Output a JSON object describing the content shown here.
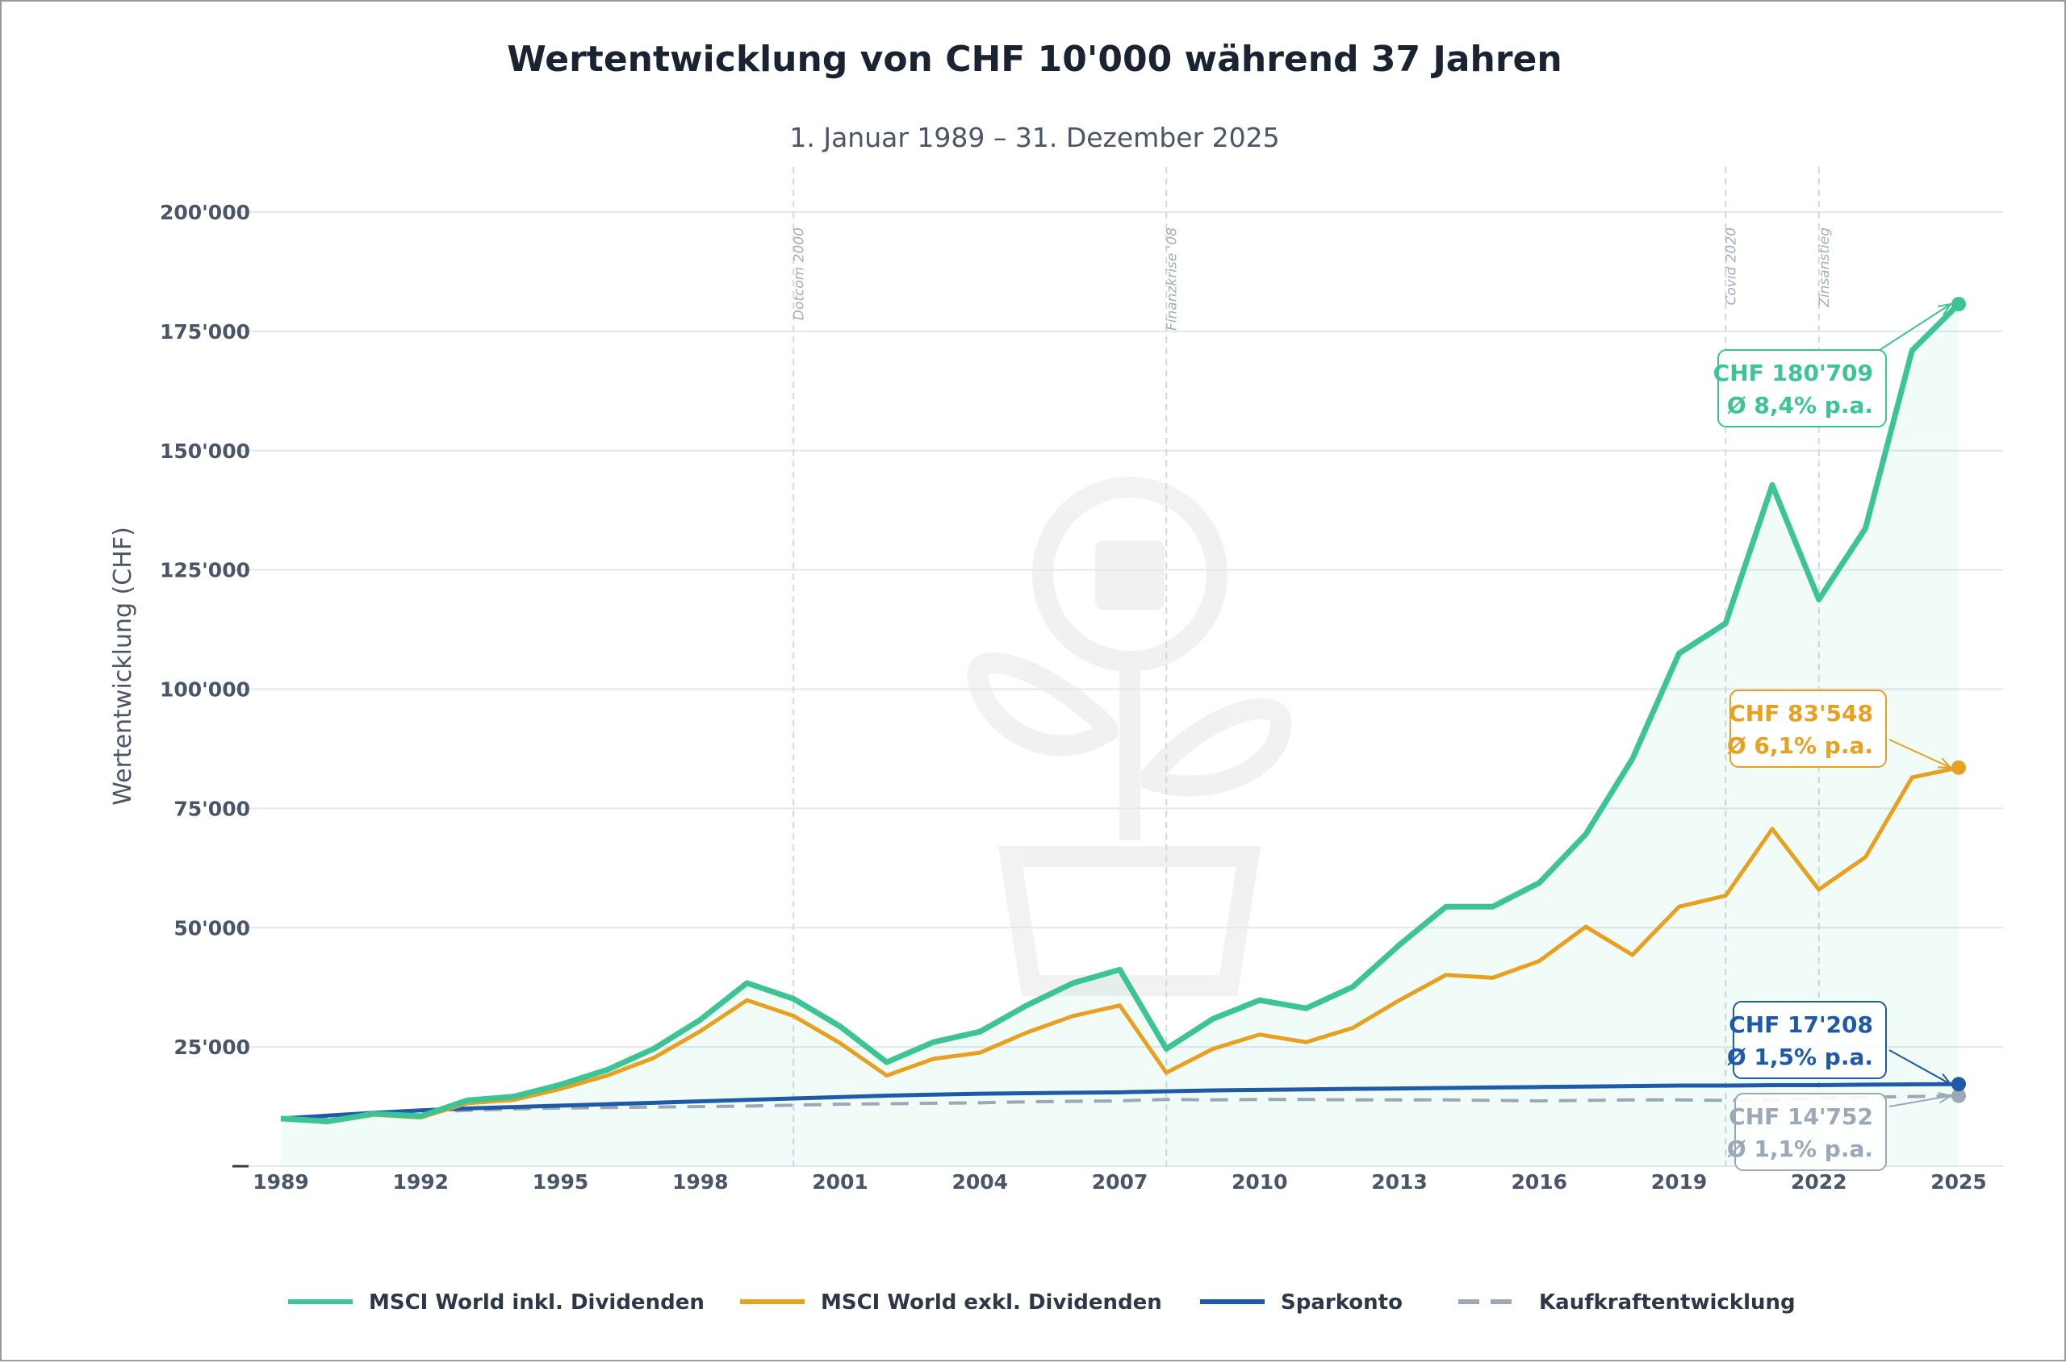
{
  "chart_data": {
    "type": "line",
    "title": "Wertentwicklung von CHF 10'000 während 37 Jahren",
    "subtitle": "1. Januar 1989 – 31. Dezember 2025",
    "ylabel": "Wertentwicklung (CHF)",
    "xlabel": "",
    "xlim": [
      1989,
      2025
    ],
    "ylim": [
      0,
      200000
    ],
    "grid": true,
    "legend_position": "bottom",
    "x_ticks": [
      "1989",
      "1992",
      "1995",
      "1998",
      "2001",
      "2004",
      "2007",
      "2010",
      "2013",
      "2016",
      "2019",
      "2022",
      "2025"
    ],
    "y_ticks": [
      {
        "value": 25000,
        "label": "25'000"
      },
      {
        "value": 50000,
        "label": "50'000"
      },
      {
        "value": 75000,
        "label": "75'000"
      },
      {
        "value": 100000,
        "label": "100'000"
      },
      {
        "value": 125000,
        "label": "125'000"
      },
      {
        "value": 150000,
        "label": "150'000"
      },
      {
        "value": 175000,
        "label": "175'000"
      },
      {
        "value": 200000,
        "label": "200'000"
      }
    ],
    "x": [
      1989,
      1990,
      1991,
      1992,
      1993,
      1994,
      1995,
      1996,
      1997,
      1998,
      1999,
      2000,
      2001,
      2002,
      2003,
      2004,
      2005,
      2006,
      2007,
      2008,
      2009,
      2010,
      2011,
      2012,
      2013,
      2014,
      2015,
      2016,
      2017,
      2018,
      2019,
      2020,
      2021,
      2022,
      2023,
      2024,
      2025
    ],
    "series": [
      {
        "name": "MSCI World inkl. Dividenden",
        "color": "#3cc494",
        "style": "solid",
        "fill": true,
        "values": [
          10000,
          9400,
          11000,
          10500,
          13800,
          14600,
          17100,
          20200,
          24600,
          30700,
          38400,
          35100,
          29300,
          21800,
          26000,
          28200,
          33700,
          38400,
          41200,
          24600,
          30900,
          34800,
          33100,
          37600,
          46400,
          54400,
          54400,
          59400,
          69600,
          85400,
          107500,
          113800,
          142800,
          118800,
          133700,
          171000,
          180709
        ],
        "annotation": {
          "line1": "CHF 180'709",
          "line2": "Ø 8,4% p.a."
        }
      },
      {
        "name": "MSCI World exkl. Dividenden",
        "color": "#e8a020",
        "style": "solid",
        "values": [
          10000,
          9200,
          10800,
          10200,
          13200,
          13900,
          16200,
          19000,
          22700,
          28300,
          34800,
          31500,
          25800,
          19000,
          22500,
          23800,
          28000,
          31500,
          33700,
          19600,
          24600,
          27600,
          26000,
          29000,
          34800,
          40100,
          39500,
          43000,
          50200,
          44300,
          54400,
          56700,
          70700,
          58000,
          64800,
          81500,
          83548
        ],
        "annotation": {
          "line1": "CHF 83'548",
          "line2": "Ø 6,1% p.a."
        }
      },
      {
        "name": "Sparkonto",
        "color": "#1e5aa8",
        "style": "solid",
        "values": [
          10000,
          10600,
          11200,
          11700,
          12100,
          12400,
          12700,
          13000,
          13300,
          13600,
          13900,
          14200,
          14500,
          14800,
          15000,
          15200,
          15300,
          15400,
          15500,
          15700,
          15900,
          16000,
          16100,
          16200,
          16300,
          16400,
          16500,
          16600,
          16700,
          16800,
          16900,
          16900,
          17000,
          17000,
          17100,
          17150,
          17208
        ],
        "annotation": {
          "line1": "CHF 17'208",
          "line2": "Ø 1,5% p.a."
        }
      },
      {
        "name": "Kaufkraftentwicklung",
        "color": "#9aa8b8",
        "style": "dashed",
        "values": [
          10000,
          10300,
          10800,
          11300,
          11700,
          12000,
          12200,
          12300,
          12400,
          12500,
          12600,
          12800,
          13000,
          13100,
          13200,
          13300,
          13500,
          13600,
          13700,
          14000,
          13900,
          14000,
          14000,
          13900,
          13900,
          13900,
          13800,
          13700,
          13800,
          13900,
          13900,
          13800,
          13900,
          14300,
          14500,
          14600,
          14752
        ],
        "annotation": {
          "line1": "CHF 14'752",
          "line2": "Ø 1,1% p.a."
        }
      }
    ],
    "events": [
      {
        "year": 2000,
        "label": "Dotcom 2000"
      },
      {
        "year": 2008,
        "label": "Finanzkrise '08"
      },
      {
        "year": 2020,
        "label": "Covid 2020"
      },
      {
        "year": 2022,
        "label": "Zinsanstieg"
      }
    ]
  }
}
